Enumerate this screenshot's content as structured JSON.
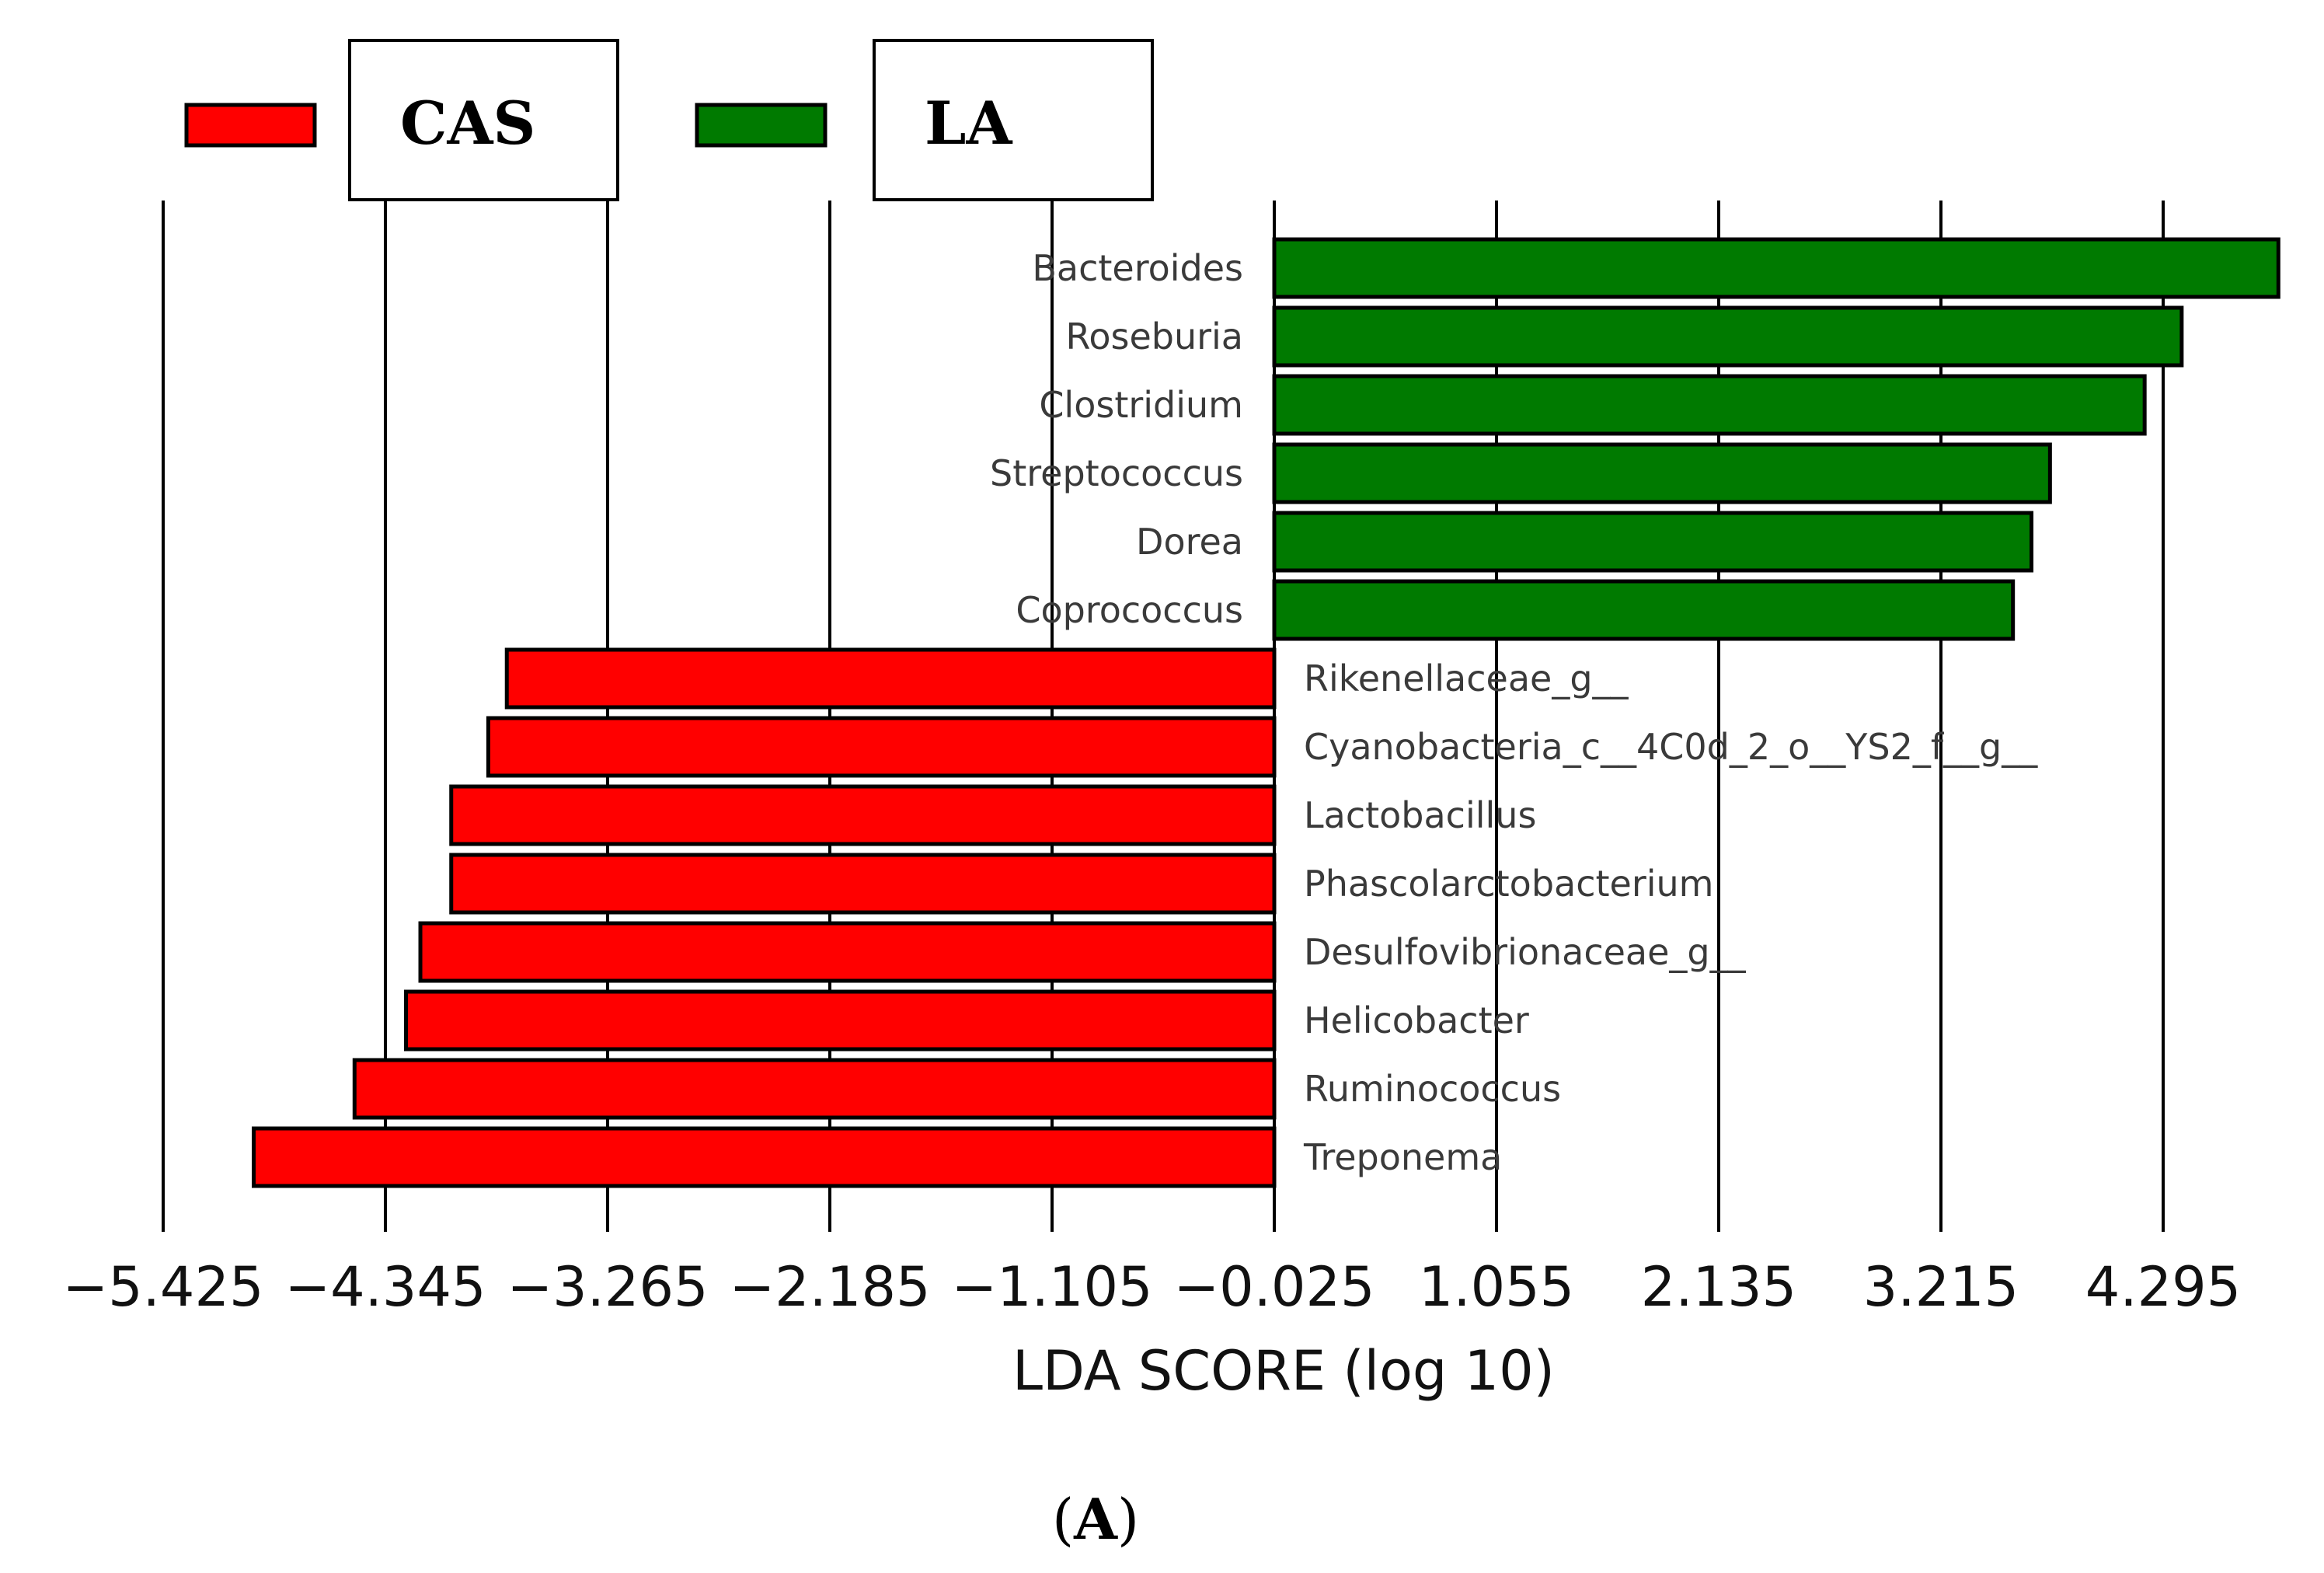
{
  "chart_data": {
    "type": "bar",
    "orientation": "horizontal",
    "xlabel": "LDA SCORE (log 10)",
    "xticks": [
      -5.425,
      -4.345,
      -3.265,
      -2.185,
      -1.105,
      -0.025,
      1.055,
      2.135,
      3.215,
      4.295
    ],
    "xtick_labels": [
      "−5.425",
      "−4.345",
      "−3.265",
      "−2.185",
      "−1.105",
      "−0.025",
      "1.055",
      "2.135",
      "3.215",
      "4.295"
    ],
    "xlim": [
      -5.425,
      4.9
    ],
    "grid": true,
    "legend": [
      {
        "name": "CAS",
        "color": "#ff0000"
      },
      {
        "name": "LA",
        "color": "#007a00"
      }
    ],
    "categories": [
      "Bacteroides",
      "Roseburia",
      "Clostridium",
      "Streptococcus",
      "Dorea",
      "Coprococcus",
      "Rikenellaceae_g__",
      "Cyanobacteria_c__4C0d_2_o__YS2_f__g__",
      "Lactobacillus",
      "Phascolarctobacterium",
      "Desulfovibrionaceae_g__",
      "Helicobacter",
      "Ruminococcus",
      "Treponema"
    ],
    "values": [
      4.88,
      4.41,
      4.23,
      3.77,
      3.68,
      3.59,
      -3.73,
      -3.82,
      -4.0,
      -4.0,
      -4.15,
      -4.22,
      -4.47,
      -4.96
    ],
    "groups": [
      "LA",
      "LA",
      "LA",
      "LA",
      "LA",
      "LA",
      "CAS",
      "CAS",
      "CAS",
      "CAS",
      "CAS",
      "CAS",
      "CAS",
      "CAS"
    ]
  },
  "panel_label": {
    "open": "(",
    "letter": "A",
    "close": ")"
  }
}
